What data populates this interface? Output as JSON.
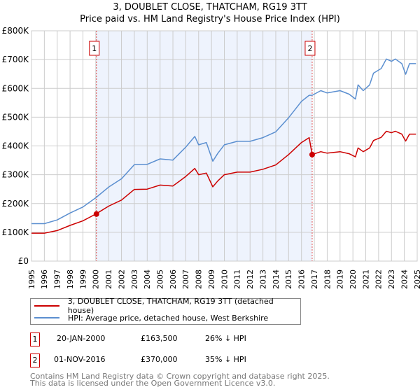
{
  "header": {
    "title": "3, DOUBLET CLOSE, THATCHAM, RG19 3TT",
    "subtitle": "Price paid vs. HM Land Registry's House Price Index (HPI)"
  },
  "legend": {
    "items": [
      {
        "label": "3, DOUBLET CLOSE, THATCHAM, RG19 3TT (detached house)",
        "color": "#cc0000"
      },
      {
        "label": "HPI: Average price, detached house, West Berkshire",
        "color": "#5b8fd0"
      }
    ]
  },
  "sales": [
    {
      "num": "1",
      "date": "20-JAN-2000",
      "price": "£163,500",
      "delta": "26% ↓ HPI",
      "x": 2000.05,
      "value": 163.5
    },
    {
      "num": "2",
      "date": "01-NOV-2016",
      "price": "£370,000",
      "delta": "35% ↓ HPI",
      "x": 2016.83,
      "value": 370
    }
  ],
  "footer": {
    "line1": "Contains HM Land Registry data © Crown copyright and database right 2025.",
    "line2": "This data is licensed under the Open Government Licence v3.0."
  },
  "chart_data": {
    "type": "line",
    "title": "3, DOUBLET CLOSE, THATCHAM, RG19 3TT",
    "xlim": [
      1995,
      2025
    ],
    "ylim": [
      0,
      800
    ],
    "y_unit": "£K",
    "yticks": [
      {
        "v": 0,
        "label": "£0"
      },
      {
        "v": 100,
        "label": "£100K"
      },
      {
        "v": 200,
        "label": "£200K"
      },
      {
        "v": 300,
        "label": "£300K"
      },
      {
        "v": 400,
        "label": "£400K"
      },
      {
        "v": 500,
        "label": "£500K"
      },
      {
        "v": 600,
        "label": "£600K"
      },
      {
        "v": 700,
        "label": "£700K"
      },
      {
        "v": 800,
        "label": "£800K"
      }
    ],
    "xticks": [
      "1995",
      "1996",
      "1997",
      "1998",
      "1999",
      "2000",
      "2001",
      "2002",
      "2003",
      "2004",
      "2005",
      "2006",
      "2007",
      "2008",
      "2009",
      "2010",
      "2011",
      "2012",
      "2013",
      "2014",
      "2015",
      "2016",
      "2017",
      "2018",
      "2019",
      "2020",
      "2021",
      "2022",
      "2023",
      "2024",
      "2025"
    ],
    "grid": true,
    "x": [
      1995,
      1996,
      1997,
      1998,
      1999,
      2000,
      2001,
      2002,
      2003,
      2004,
      2005,
      2006,
      2007,
      2007.7,
      2008,
      2008.6,
      2009.1,
      2009.5,
      2010,
      2011,
      2012,
      2013,
      2014,
      2015,
      2016,
      2016.6,
      2016.83,
      2017.5,
      2018,
      2019,
      2019.7,
      2020.2,
      2020.4,
      2020.8,
      2021.3,
      2021.6,
      2022.2,
      2022.6,
      2023,
      2023.3,
      2023.8,
      2024.1,
      2024.4,
      2024.9
    ],
    "series": [
      {
        "name": "3, DOUBLET CLOSE, THATCHAM, RG19 3TT (detached house)",
        "color": "#cc0000",
        "values": [
          97,
          97,
          106,
          124,
          140,
          163.5,
          191,
          212,
          249,
          250,
          264,
          261,
          294,
          322,
          300,
          306,
          258,
          279,
          300,
          309,
          309,
          319,
          334,
          370,
          412,
          429,
          370,
          380,
          375,
          380,
          373,
          362,
          393,
          380,
          393,
          419,
          430,
          451,
          446,
          451,
          441,
          417,
          441,
          441
        ]
      },
      {
        "name": "HPI: Average price, detached house, West Berkshire",
        "color": "#5b8fd0",
        "values": [
          130,
          130,
          143,
          167,
          188,
          220,
          257,
          286,
          335,
          336,
          355,
          351,
          396,
          433,
          404,
          412,
          347,
          375,
          404,
          416,
          416,
          429,
          449,
          498,
          555,
          576,
          576,
          592,
          584,
          592,
          580,
          563,
          612,
          592,
          612,
          653,
          669,
          702,
          694,
          702,
          686,
          649,
          686,
          686
        ]
      }
    ]
  }
}
